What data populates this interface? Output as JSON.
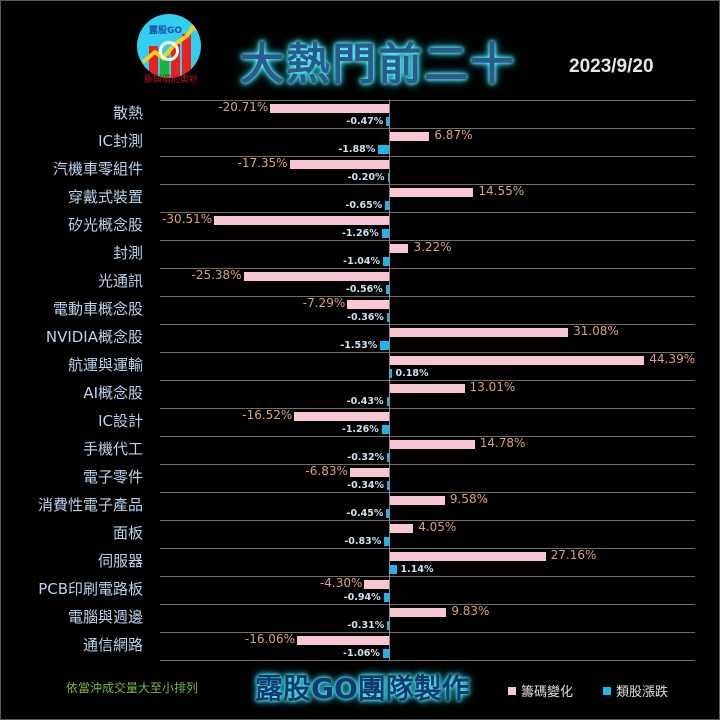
{
  "header": {
    "logo_label": "露股GO",
    "logo_tagline": "脈與價的奧妙",
    "title": "大熱門前二十",
    "date": "2023/9/20"
  },
  "footer": {
    "sort_note": "依當沖成交量大至小排列",
    "credit": "露股GO團隊製作",
    "legend": [
      {
        "label": "籌碼變化",
        "color": "#f8c5d3"
      },
      {
        "label": "類股漲跌",
        "color": "#1eb4ee"
      }
    ]
  },
  "colors": {
    "background": "#000000",
    "chip_change_bar": "#f8c5d3",
    "sector_change_bar": "#1eb4ee",
    "chip_label": "#d9a27a",
    "category_text": "#b9d3ec"
  },
  "chart_data": {
    "type": "bar",
    "orientation": "horizontal",
    "title": "大熱門前二十",
    "subtitle": "2023/9/20",
    "xlabel": "",
    "ylabel": "",
    "grid": true,
    "legend_position": "bottom-right",
    "categories": [
      "散熱",
      "IC封測",
      "汽機車零組件",
      "穿戴式裝置",
      "矽光概念股",
      "封測",
      "光通訊",
      "電動車概念股",
      "NVIDIA概念股",
      "航運與運輸",
      "AI概念股",
      "IC設計",
      "手機代工",
      "電子零件",
      "消費性電子產品",
      "面板",
      "伺服器",
      "PCB印刷電路板",
      "電腦與週邊",
      "通信網路"
    ],
    "series": [
      {
        "name": "籌碼變化",
        "unit": "%",
        "values": [
          -20.71,
          6.87,
          -17.35,
          14.55,
          -30.51,
          3.22,
          -25.38,
          -7.29,
          31.08,
          44.39,
          13.01,
          -16.52,
          14.78,
          -6.83,
          9.58,
          4.05,
          27.16,
          -4.3,
          9.83,
          -16.06
        ]
      },
      {
        "name": "類股漲跌",
        "unit": "%",
        "values": [
          -0.47,
          -1.88,
          -0.2,
          -0.65,
          -1.26,
          -1.04,
          -0.56,
          -0.36,
          -1.53,
          0.18,
          -0.43,
          -1.26,
          -0.32,
          -0.34,
          -0.45,
          -0.83,
          1.14,
          -0.94,
          -0.31,
          -1.06
        ]
      }
    ],
    "labels": {
      "chip": [
        "-20.71%",
        "6.87%",
        "-17.35%",
        "14.55%",
        "-30.51%",
        "3.22%",
        "-25.38%",
        "-7.29%",
        "31.08%",
        "44.39%",
        "13.01%",
        "-16.52%",
        "14.78%",
        "-6.83%",
        "9.58%",
        "4.05%",
        "27.16%",
        "-4.30%",
        "9.83%",
        "-16.06%"
      ],
      "sector": [
        "-0.47%",
        "-1.88%",
        "-0.20%",
        "-0.65%",
        "-1.26%",
        "-1.04%",
        "-0.56%",
        "-0.36%",
        "-1.53%",
        "0.18%",
        "-0.43%",
        "-1.26%",
        "-0.32%",
        "-0.34%",
        "-0.45%",
        "-0.83%",
        "1.14%",
        "-0.94%",
        "-0.31%",
        "-1.06%"
      ]
    }
  }
}
